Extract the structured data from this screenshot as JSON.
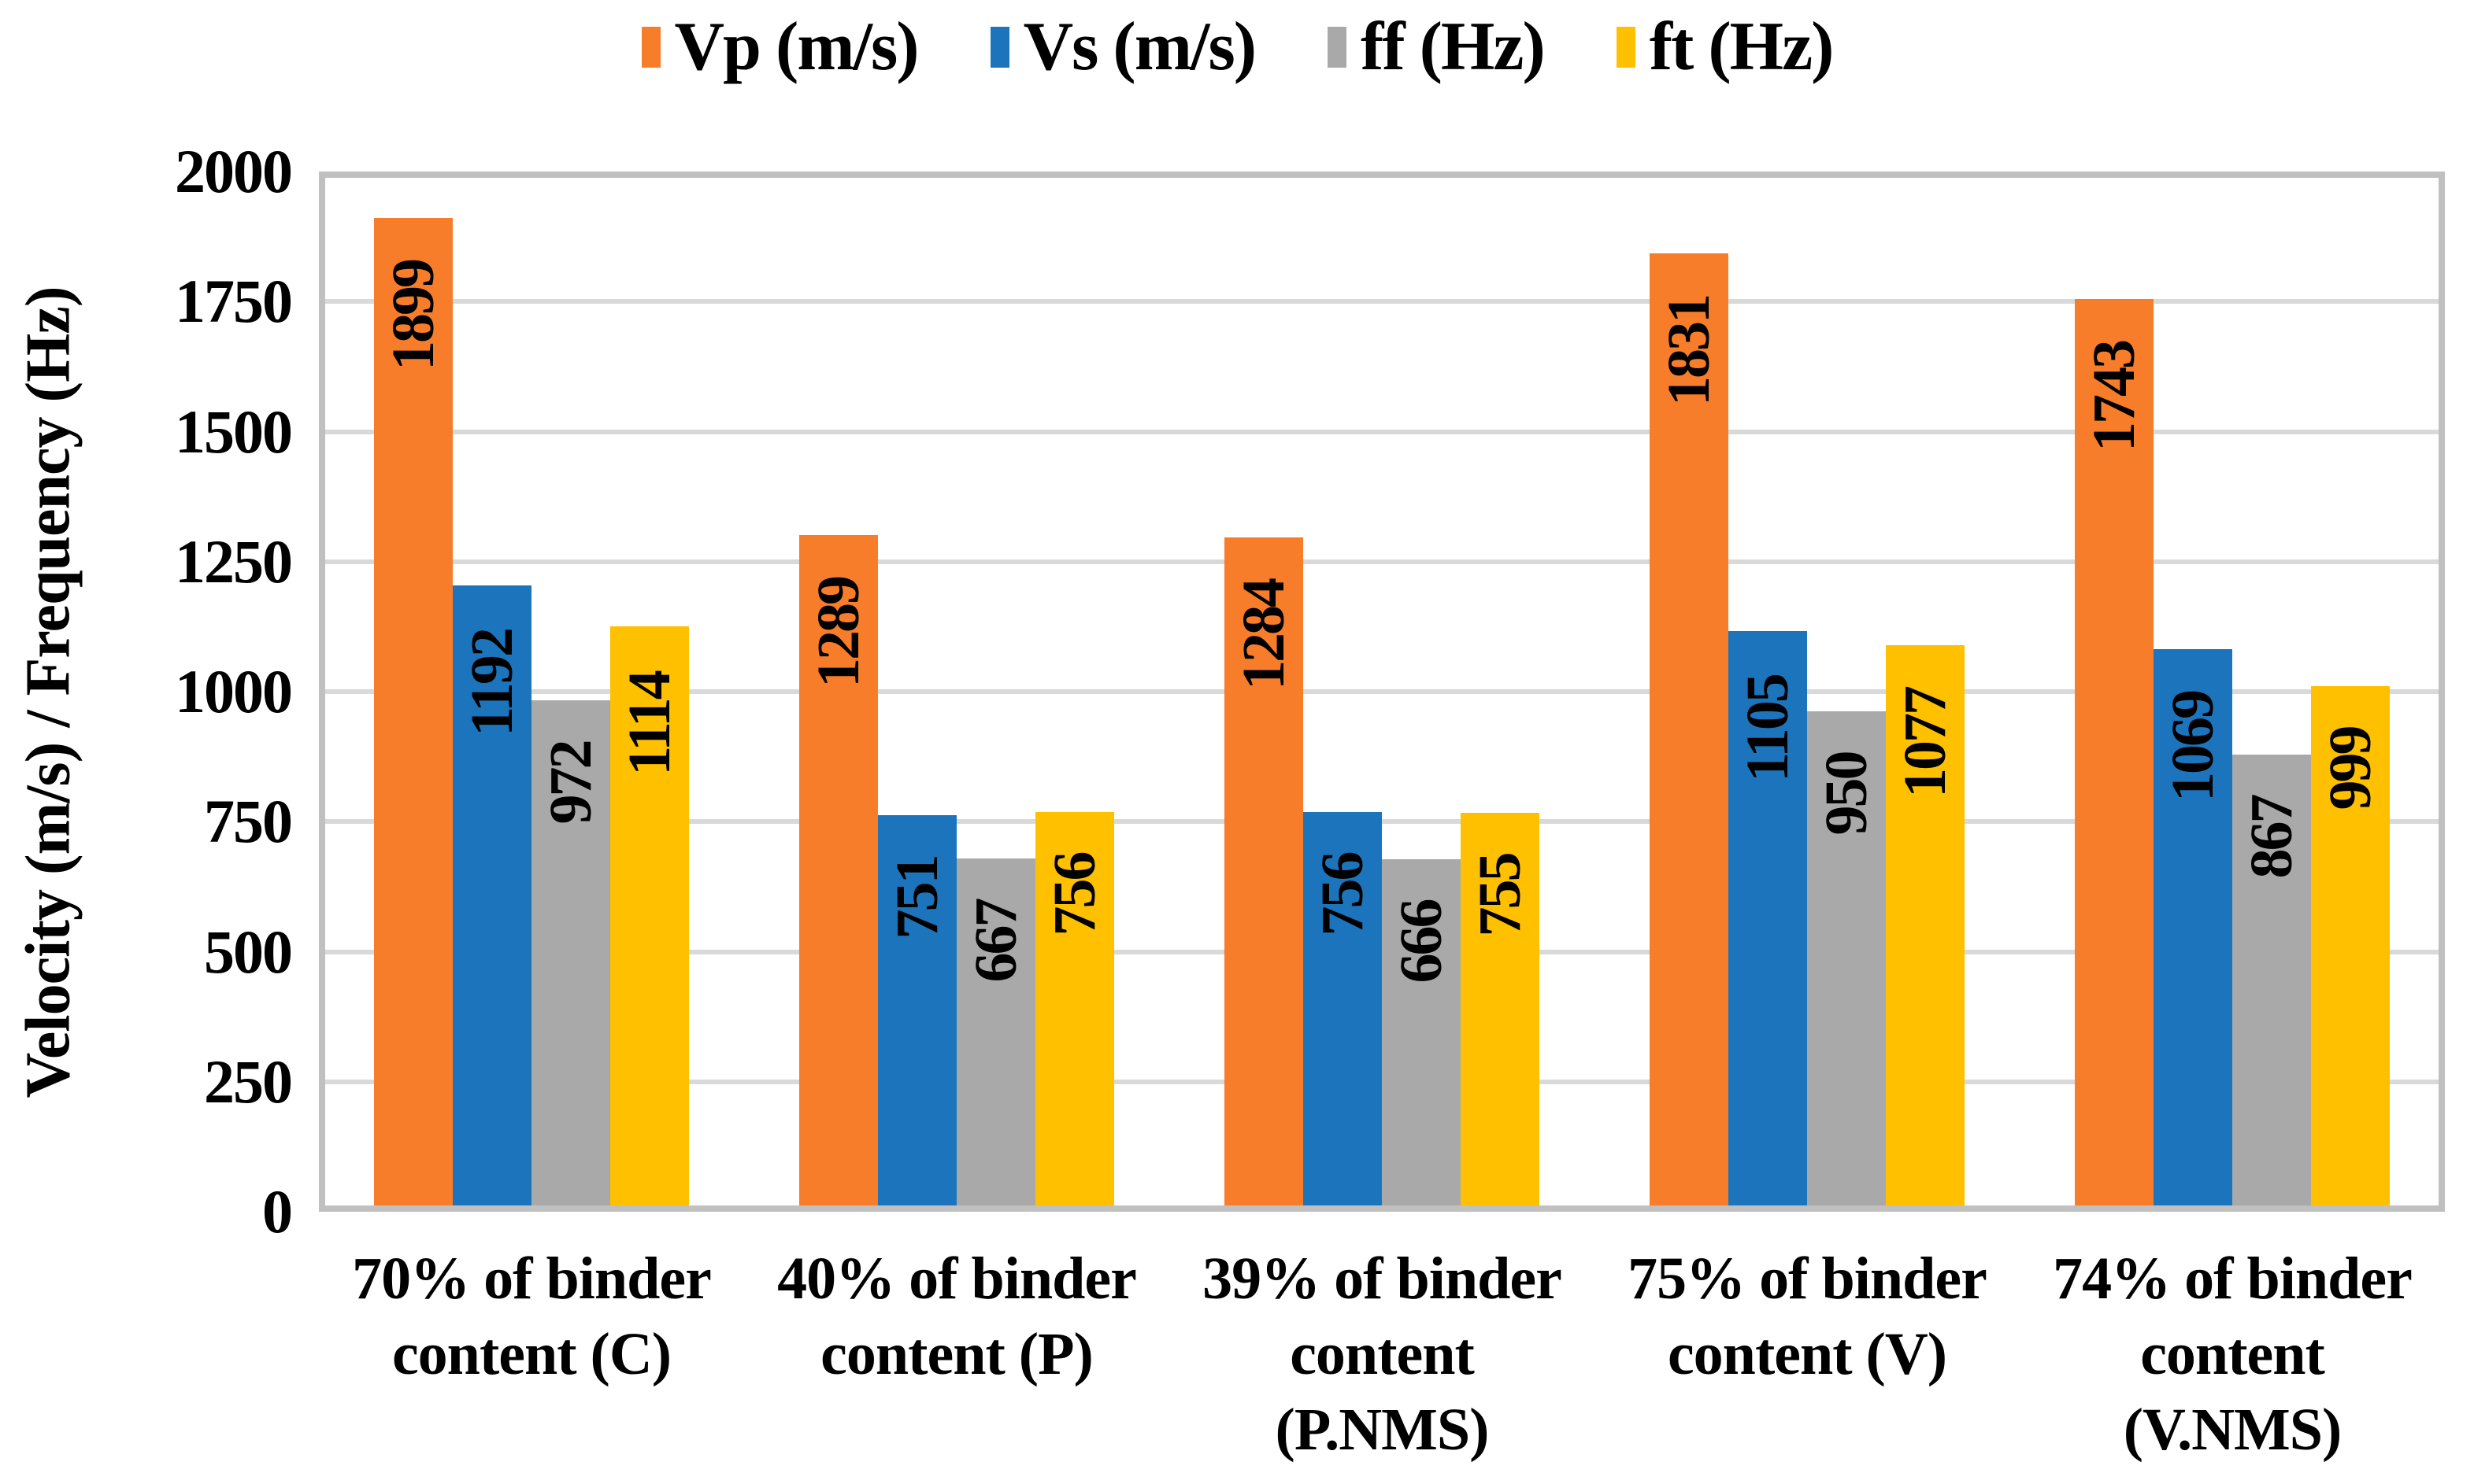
{
  "chart_data": {
    "type": "bar",
    "title": "",
    "xlabel": "",
    "ylabel": "Velocity (m/s) / Frequency (Hz)",
    "ylim": [
      0,
      2000
    ],
    "ytick_step": 250,
    "yticks": [
      2000,
      1750,
      1500,
      1250,
      1000,
      750,
      500,
      250,
      0
    ],
    "grid": true,
    "legend_position": "top",
    "bar_label_rotation": -90,
    "categories": [
      "70% of binder content (C)",
      "40% of binder content (P)",
      "39% of binder content (P.NMS)",
      "75% of binder content (V)",
      "74% of binder content (V.NMS)"
    ],
    "category_lines": [
      [
        "70% of binder",
        "content (C)"
      ],
      [
        "40% of binder",
        "content (P)"
      ],
      [
        "39% of binder",
        "content",
        "(P.NMS)"
      ],
      [
        "75% of binder",
        "content (V)"
      ],
      [
        "74% of binder",
        "content",
        "(V.NMS)"
      ]
    ],
    "series": [
      {
        "name": "Vp (m/s)",
        "color": "#F87D2B",
        "values": [
          1899,
          1289,
          1284,
          1831,
          1743
        ]
      },
      {
        "name": "Vs (m/s)",
        "color": "#1C75BC",
        "values": [
          1192,
          751,
          756,
          1105,
          1069
        ]
      },
      {
        "name": "ff (Hz)",
        "color": "#A9A9A9",
        "values": [
          972,
          667,
          666,
          950,
          867
        ]
      },
      {
        "name": "ft (Hz)",
        "color": "#FFC000",
        "values": [
          1114,
          756,
          755,
          1077,
          999
        ]
      }
    ],
    "colors": {
      "background": "#FFFFFF",
      "gridline": "#D9D9D9",
      "axis_border": "#C0C0C0",
      "text": "#000000"
    }
  }
}
